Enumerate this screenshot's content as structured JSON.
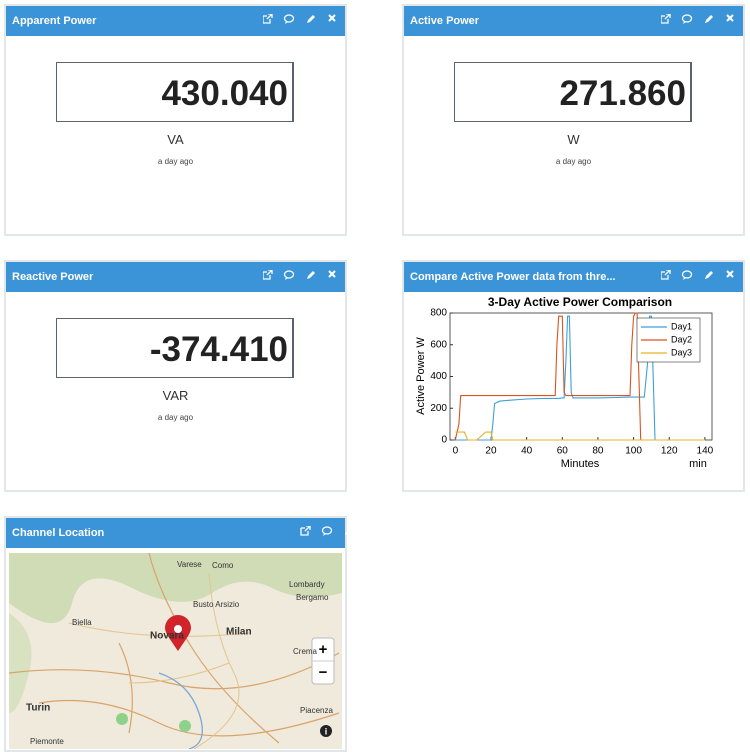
{
  "widgets": [
    {
      "title": "Apparent Power",
      "value": "430.040",
      "unit": "VA",
      "time": "a day ago"
    },
    {
      "title": "Active Power",
      "value": "271.860",
      "unit": "W",
      "time": "a day ago"
    },
    {
      "title": "Reactive Power",
      "value": "-374.410",
      "unit": "VAR",
      "time": "a day ago"
    }
  ],
  "chart_widget": {
    "title": "Compare Active Power data from thre..."
  },
  "map_widget": {
    "title": "Channel Location",
    "labels": [
      "Varese",
      "Como",
      "Lombardy",
      "Busto Arsizio",
      "Bergamo",
      "Biella",
      "Novara",
      "Milan",
      "Crema",
      "Turin",
      "Piacenza",
      "Piemonte"
    ],
    "controls": [
      "+",
      "−"
    ],
    "info": "i"
  },
  "chart_data": {
    "type": "line",
    "title": "3-Day Active Power Comparison",
    "xlabel": "Minutes",
    "xunit": "min",
    "ylabel": "Active Power W",
    "x": [
      0,
      2,
      3,
      5,
      7,
      12,
      17,
      20,
      21,
      22,
      25,
      30,
      40,
      50,
      56,
      57,
      58,
      60,
      61,
      62,
      63,
      64,
      65,
      66,
      70,
      80,
      90,
      98,
      99,
      100,
      101,
      102,
      103,
      104,
      106,
      108,
      109,
      110,
      111,
      112,
      113,
      120,
      130,
      140
    ],
    "series": [
      {
        "name": "Day1",
        "color": "#3d9fdb",
        "values": [
          0,
          0,
          0,
          0,
          0,
          0,
          0,
          0,
          100,
          230,
          245,
          250,
          258,
          262,
          262,
          262,
          262,
          265,
          265,
          500,
          780,
          780,
          300,
          265,
          265,
          265,
          268,
          270,
          270,
          270,
          270,
          270,
          270,
          270,
          270,
          500,
          780,
          780,
          400,
          0,
          0,
          0,
          0,
          0
        ]
      },
      {
        "name": "Day2",
        "color": "#d9541e",
        "values": [
          0,
          100,
          280,
          280,
          280,
          280,
          280,
          280,
          280,
          280,
          280,
          280,
          280,
          280,
          280,
          600,
          780,
          780,
          300,
          280,
          280,
          280,
          280,
          280,
          280,
          280,
          280,
          280,
          600,
          780,
          800,
          800,
          400,
          0,
          0,
          0,
          0,
          0,
          0,
          0,
          0,
          0,
          0,
          0
        ]
      },
      {
        "name": "Day3",
        "color": "#edb120",
        "values": [
          50,
          50,
          50,
          50,
          0,
          0,
          50,
          50,
          0,
          0,
          0,
          0,
          0,
          0,
          0,
          0,
          0,
          0,
          0,
          0,
          0,
          0,
          0,
          0,
          0,
          0,
          0,
          0,
          0,
          0,
          0,
          0,
          0,
          0,
          0,
          0,
          0,
          0,
          0,
          0,
          0,
          0,
          0,
          0
        ]
      }
    ],
    "xlim": [
      -3,
      144
    ],
    "xticks": [
      0,
      20,
      40,
      60,
      80,
      100,
      120,
      140
    ],
    "ylim": [
      0,
      800
    ],
    "yticks": [
      0,
      200,
      400,
      600,
      800
    ],
    "legend": "upper right"
  }
}
